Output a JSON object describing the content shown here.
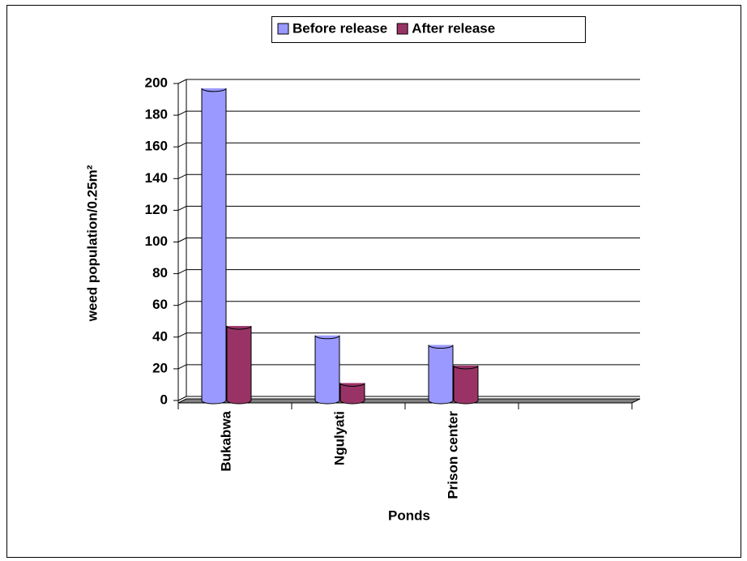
{
  "chart_data": {
    "type": "bar3d",
    "categories": [
      "Bukabwa",
      "Ngulyati",
      "Prison center",
      null
    ],
    "series": [
      {
        "name": "Before release",
        "color": "#9999ff",
        "values": [
          196,
          40,
          34,
          null
        ]
      },
      {
        "name": "After release",
        "color": "#993366",
        "values": [
          46,
          10,
          21,
          null
        ]
      }
    ],
    "ylim": [
      0,
      200
    ],
    "yticks": [
      0,
      20,
      40,
      60,
      80,
      100,
      120,
      140,
      160,
      180,
      200
    ],
    "grid": true,
    "legend": "top",
    "xlabel": "Ponds",
    "ylabel": "weed population/0.25m²"
  }
}
